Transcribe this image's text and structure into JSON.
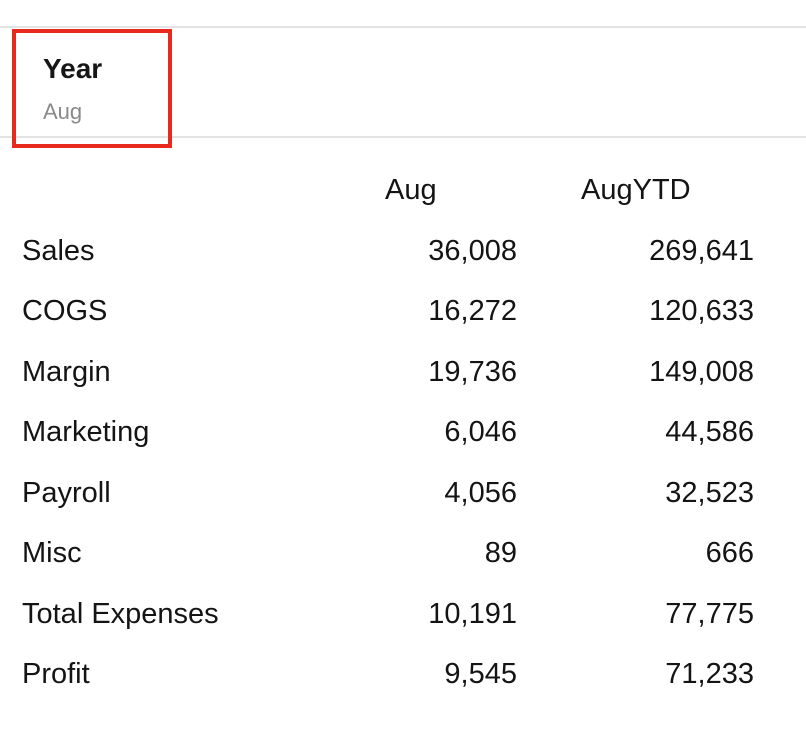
{
  "pov": {
    "dimension": "Year",
    "selection": "Aug"
  },
  "grid": {
    "columns": [
      "Aug",
      "AugYTD"
    ],
    "rows": [
      {
        "label": "Sales",
        "values": [
          "36,008",
          "269,641"
        ]
      },
      {
        "label": "COGS",
        "values": [
          "16,272",
          "120,633"
        ]
      },
      {
        "label": "Margin",
        "values": [
          "19,736",
          "149,008"
        ]
      },
      {
        "label": "Marketing",
        "values": [
          "6,046",
          "44,586"
        ]
      },
      {
        "label": "Payroll",
        "values": [
          "4,056",
          "32,523"
        ]
      },
      {
        "label": "Misc",
        "values": [
          "89",
          "666"
        ]
      },
      {
        "label": "Total Expenses",
        "values": [
          "10,191",
          "77,775"
        ]
      },
      {
        "label": "Profit",
        "values": [
          "9,545",
          "71,233"
        ]
      }
    ]
  },
  "colors": {
    "highlight_border": "#e8291d",
    "divider": "#e3e3e3",
    "muted_text": "#8a8a8a"
  }
}
